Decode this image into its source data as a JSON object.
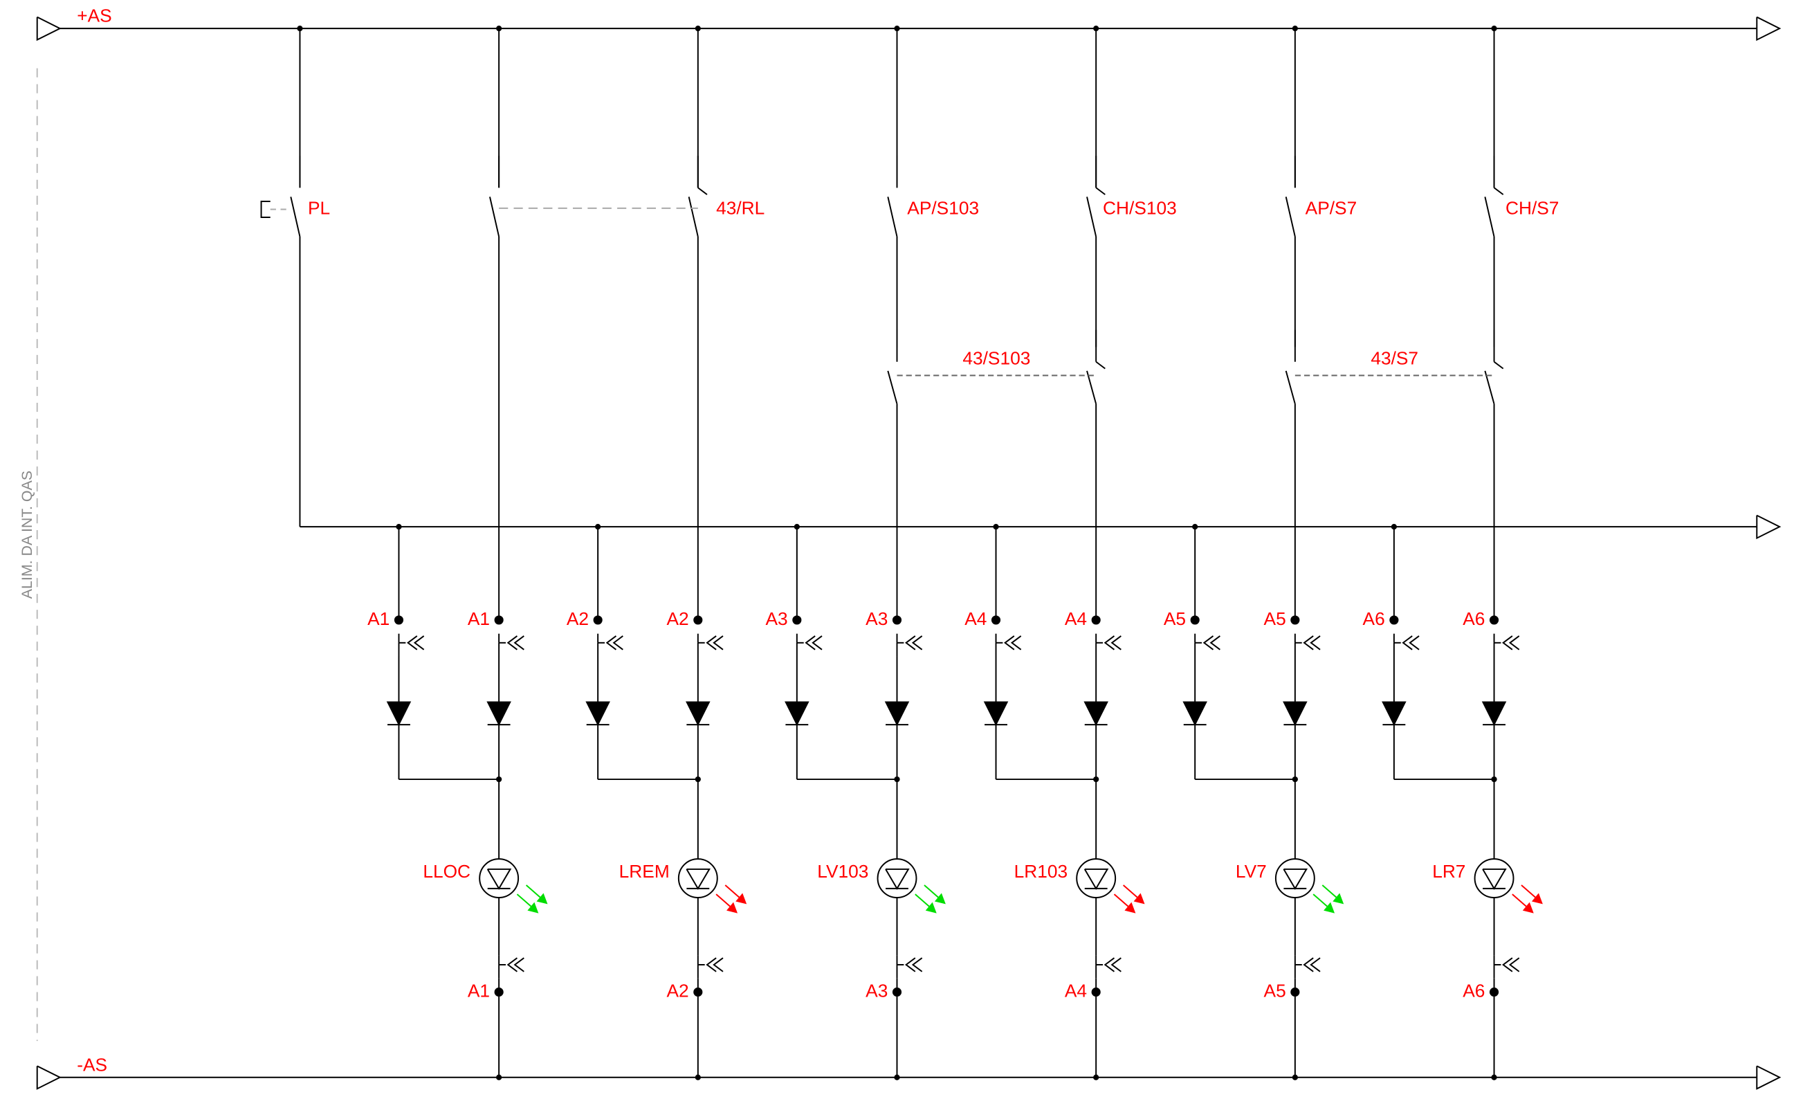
{
  "rails": {
    "positive": "+AS",
    "negative": "-AS"
  },
  "supply_label": "ALIM. DA INT. QAS",
  "switches": [
    {
      "label": "PL"
    },
    {
      "label": "43/RL"
    },
    {
      "label": "AP/S103"
    },
    {
      "label": "CH/S103"
    },
    {
      "label": "AP/S7"
    },
    {
      "label": "CH/S7"
    }
  ],
  "interlocks": [
    {
      "label": "43/S103"
    },
    {
      "label": "43/S7"
    }
  ],
  "terminals": [
    "A1",
    "A1",
    "A2",
    "A2",
    "A3",
    "A3",
    "A4",
    "A4",
    "A5",
    "A5",
    "A6",
    "A6"
  ],
  "lamps": [
    {
      "label": "LLOC",
      "terminal": "A1",
      "color": "#00dd00"
    },
    {
      "label": "LREM",
      "terminal": "A2",
      "color": "#ff0000"
    },
    {
      "label": "LV103",
      "terminal": "A3",
      "color": "#00dd00"
    },
    {
      "label": "LR103",
      "terminal": "A4",
      "color": "#ff0000"
    },
    {
      "label": "LV7",
      "terminal": "A5",
      "color": "#00dd00"
    },
    {
      "label": "LR7",
      "terminal": "A6",
      "color": "#ff0000"
    }
  ]
}
